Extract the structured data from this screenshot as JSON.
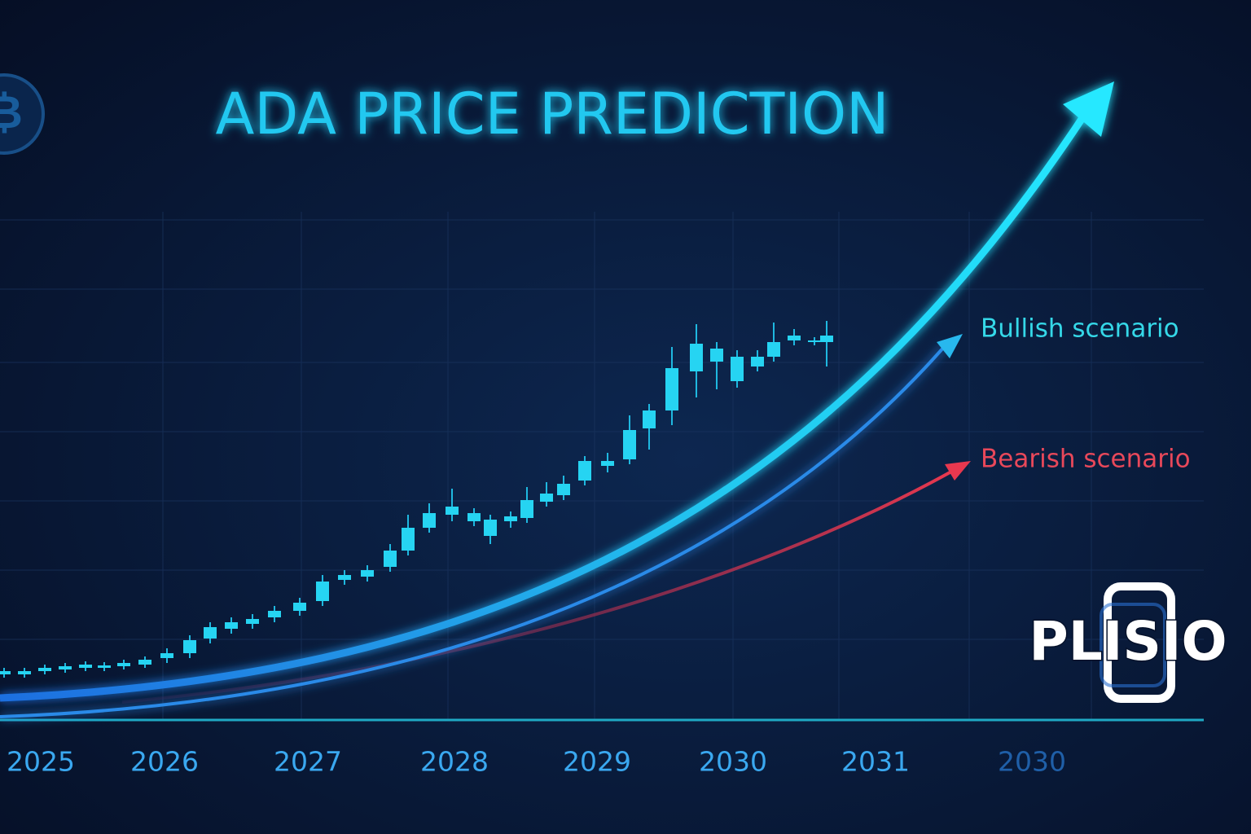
{
  "title": "ADA PRICE PREDICTION",
  "x_labels": [
    "2025",
    "2026",
    "2027",
    "2028",
    "2029",
    "2030",
    "2031",
    "2030"
  ],
  "scenarios": {
    "bullish": "Bullish scenario",
    "bearish": "Bearish scenario"
  },
  "logo": "PLISIO"
}
